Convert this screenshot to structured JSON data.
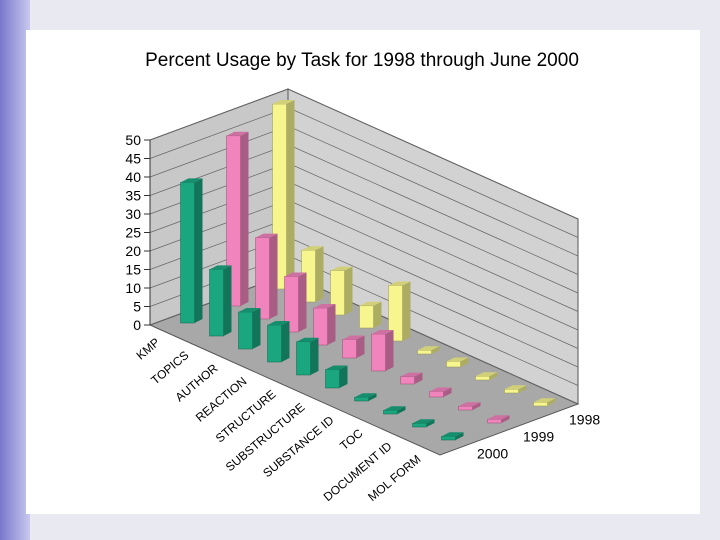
{
  "chart_data": {
    "type": "bar3d",
    "title": "Percent Usage by Task for 1998 through June 2000",
    "categories": [
      "KMP",
      "TOPICS",
      "AUTHOR",
      "REACTION",
      "STRUCTURE",
      "SUBSTRUCTURE",
      "SUBSTANCE ID",
      "TOC",
      "DOCUMENT ID",
      "MOL FORM"
    ],
    "series": [
      {
        "name": "1998",
        "color": "#f6f58e",
        "values": [
          50,
          14,
          12,
          6,
          15,
          1,
          1.5,
          1,
          1,
          1
        ]
      },
      {
        "name": "1999",
        "color": "#f284bd",
        "values": [
          46,
          22,
          15,
          10,
          5,
          10,
          2,
          1.5,
          1,
          1
        ]
      },
      {
        "name": "2000",
        "color": "#1aa67f",
        "values": [
          38,
          18,
          10,
          10,
          9,
          5,
          1,
          1,
          1,
          1
        ]
      }
    ],
    "ylim": [
      0,
      50
    ],
    "yticks": [
      0,
      5,
      10,
      15,
      20,
      25,
      30,
      35,
      40,
      45,
      50
    ],
    "grid": true
  }
}
